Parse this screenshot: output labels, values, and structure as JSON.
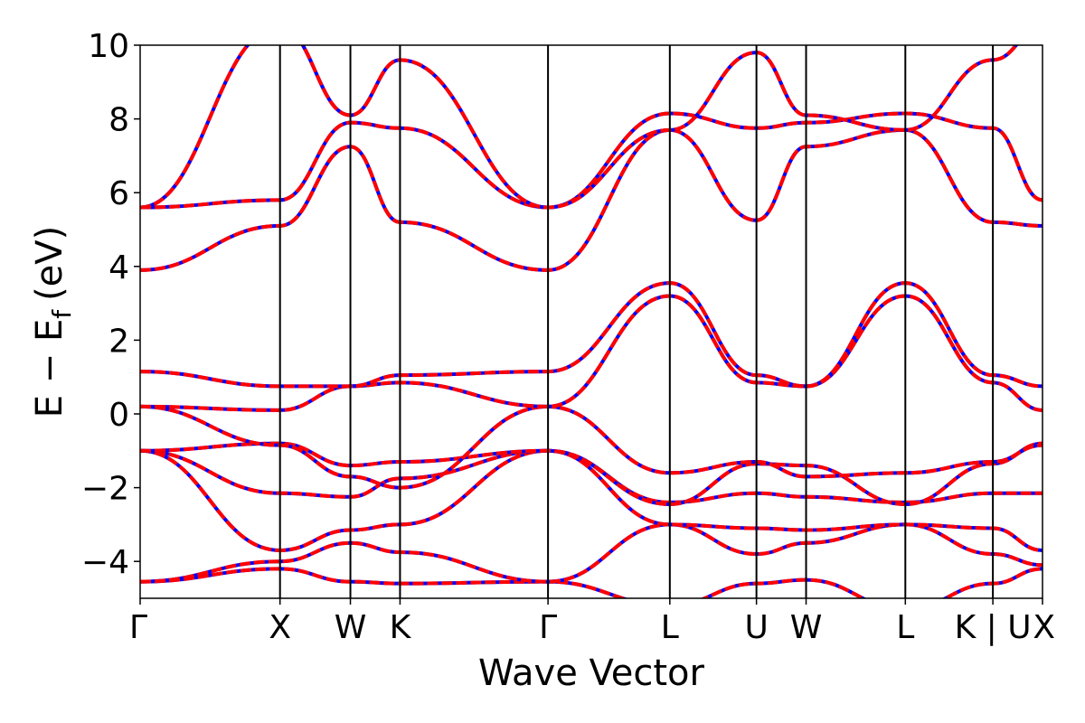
{
  "chart_data": {
    "type": "line",
    "title": "",
    "xlabel": "Wave Vector",
    "ylabel": "E  −  E",
    "ylabel_subscript": "f",
    "ylabel_unit": "(eV)",
    "ylim": [
      -5,
      10
    ],
    "yticks": [
      -4,
      -2,
      0,
      2,
      4,
      6,
      8,
      10
    ],
    "ytick_labels": [
      "−4",
      "−2",
      "0",
      "2",
      "4",
      "6",
      "8",
      "10"
    ],
    "xlim": [
      0,
      1
    ],
    "kpoints": [
      {
        "label": "Γ",
        "x": 0.0
      },
      {
        "label": "X",
        "x": 0.155
      },
      {
        "label": "W",
        "x": 0.233
      },
      {
        "label": "K",
        "x": 0.288
      },
      {
        "label": "Γ",
        "x": 0.452
      },
      {
        "label": "L",
        "x": 0.587
      },
      {
        "label": "U",
        "x": 0.683
      },
      {
        "label": "W",
        "x": 0.738
      },
      {
        "label": "L",
        "x": 0.848
      },
      {
        "label": "K | U",
        "x": 0.945
      },
      {
        "label": "X",
        "x": 1.0
      }
    ],
    "grid": false,
    "legend": "none",
    "series": [
      {
        "color": "#0000ff",
        "style": "solid",
        "x": [],
        "values": []
      },
      {
        "color": "#ff0000",
        "style": "dashed",
        "x": [],
        "values": []
      }
    ],
    "bands": [
      {
        "x": [
          0,
          0.155,
          0.233,
          0.288,
          0.452,
          0.587,
          0.683,
          0.738,
          0.848,
          0.945,
          1.0
        ],
        "y": [
          -4.55,
          -4.2,
          -4.55,
          -4.6,
          -4.55,
          -5.2,
          -4.6,
          -4.5,
          -5.3,
          -4.6,
          -4.2
        ]
      },
      {
        "x": [
          0,
          0.155,
          0.233,
          0.288,
          0.452,
          0.587,
          0.683,
          0.738,
          0.848,
          0.945,
          1.0
        ],
        "y": [
          -4.55,
          -4.0,
          -3.5,
          -3.75,
          -4.55,
          -3.0,
          -3.8,
          -3.5,
          -3.0,
          -3.8,
          -4.1
        ]
      },
      {
        "x": [
          0,
          0.155,
          0.233,
          0.288,
          0.452,
          0.587,
          0.683,
          0.738,
          0.848,
          0.945,
          1.0
        ],
        "y": [
          -1.0,
          -3.7,
          -3.15,
          -3.0,
          -1.0,
          -3.0,
          -3.1,
          -3.15,
          -3.0,
          -3.1,
          -3.7
        ]
      },
      {
        "x": [
          0,
          0.155,
          0.233,
          0.288,
          0.452,
          0.587,
          0.683,
          0.738,
          0.848,
          0.945,
          1.0
        ],
        "y": [
          -1.0,
          -2.15,
          -2.25,
          -1.75,
          -1.0,
          -2.4,
          -2.15,
          -2.25,
          -2.4,
          -2.15,
          -2.15
        ]
      },
      {
        "x": [
          0,
          0.155,
          0.233,
          0.288,
          0.452,
          0.587,
          0.683,
          0.738,
          0.848,
          0.945,
          1.0
        ],
        "y": [
          -1.0,
          -0.8,
          -1.4,
          -1.3,
          -1.0,
          -2.45,
          -1.35,
          -1.4,
          -2.45,
          -1.35,
          -0.8
        ]
      },
      {
        "x": [
          0,
          0.155,
          0.233,
          0.288,
          0.452,
          0.587,
          0.683,
          0.738,
          0.848,
          0.945,
          1.0
        ],
        "y": [
          0.2,
          -0.85,
          -1.7,
          -2.0,
          0.2,
          -1.6,
          -1.3,
          -1.7,
          -1.6,
          -1.3,
          -0.85
        ]
      },
      {
        "x": [
          0,
          0.155,
          0.233,
          0.288,
          0.452,
          0.587,
          0.683,
          0.738,
          0.848,
          0.945,
          1.0
        ],
        "y": [
          0.2,
          0.1,
          0.75,
          0.85,
          0.2,
          3.2,
          0.85,
          0.75,
          3.2,
          0.85,
          0.1
        ]
      },
      {
        "x": [
          0,
          0.155,
          0.233,
          0.288,
          0.452,
          0.587,
          0.683,
          0.738,
          0.848,
          0.945,
          1.0
        ],
        "y": [
          1.15,
          0.75,
          0.75,
          1.05,
          1.15,
          3.55,
          1.05,
          0.75,
          3.55,
          1.05,
          0.75
        ]
      },
      {
        "x": [
          0,
          0.155,
          0.233,
          0.288,
          0.452,
          0.587,
          0.683,
          0.738,
          0.848,
          0.945,
          1.0
        ],
        "y": [
          3.9,
          5.1,
          7.25,
          5.2,
          3.9,
          7.7,
          5.25,
          7.25,
          7.7,
          5.2,
          5.1
        ]
      },
      {
        "x": [
          0,
          0.155,
          0.233,
          0.288,
          0.452,
          0.587,
          0.683,
          0.738,
          0.848,
          0.945,
          1.0
        ],
        "y": [
          5.6,
          5.8,
          7.9,
          7.75,
          5.6,
          8.15,
          7.75,
          7.9,
          8.15,
          7.75,
          5.8
        ]
      },
      {
        "x": [
          0,
          0.155,
          0.233,
          0.288,
          0.452,
          0.587,
          0.683,
          0.738,
          0.848,
          0.945,
          1.0
        ],
        "y": [
          5.6,
          10.5,
          8.1,
          9.6,
          5.6,
          7.7,
          9.8,
          8.1,
          7.7,
          9.6,
          10.5
        ]
      }
    ]
  }
}
